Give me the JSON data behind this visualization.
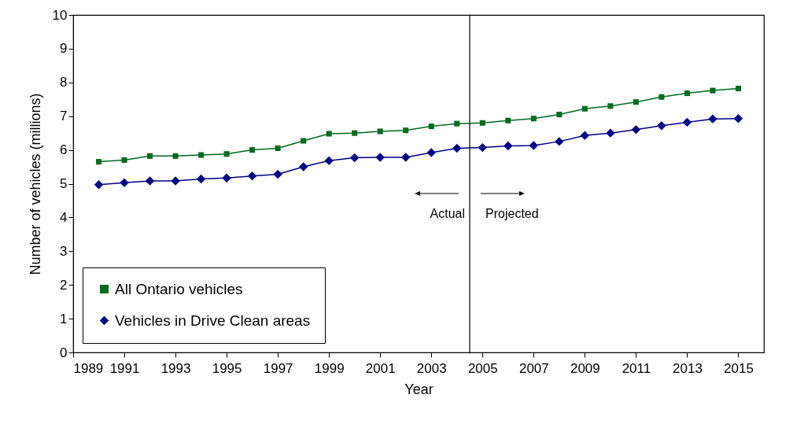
{
  "chart_data": {
    "type": "line",
    "xlabel": "Year",
    "ylabel": "Number of vehicles (millions)",
    "x": [
      1990,
      1991,
      1992,
      1993,
      1994,
      1995,
      1996,
      1997,
      1998,
      1999,
      2000,
      2001,
      2002,
      2003,
      2004,
      2005,
      2006,
      2007,
      2008,
      2009,
      2010,
      2011,
      2012,
      2013,
      2014,
      2015
    ],
    "series": [
      {
        "name": "All Ontario vehicles",
        "color": "#006b1f",
        "marker": "square",
        "values": [
          5.65,
          5.7,
          5.82,
          5.82,
          5.85,
          5.88,
          6.0,
          6.05,
          6.27,
          6.48,
          6.5,
          6.55,
          6.58,
          6.7,
          6.78,
          6.8,
          6.87,
          6.93,
          7.05,
          7.22,
          7.3,
          7.42,
          7.57,
          7.68,
          7.76,
          7.82
        ]
      },
      {
        "name": "Vehicles in Drive Clean areas",
        "color": "#000088",
        "marker": "diamond",
        "values": [
          4.97,
          5.03,
          5.08,
          5.08,
          5.14,
          5.17,
          5.23,
          5.28,
          5.5,
          5.68,
          5.77,
          5.78,
          5.78,
          5.92,
          6.05,
          6.07,
          6.12,
          6.13,
          6.25,
          6.43,
          6.5,
          6.6,
          6.72,
          6.82,
          6.92,
          6.93
        ]
      }
    ],
    "xlim": [
      1989,
      2016
    ],
    "xticks": [
      1989,
      1991,
      1993,
      1995,
      1997,
      1999,
      2001,
      2003,
      2005,
      2007,
      2009,
      2011,
      2013,
      2015
    ],
    "ylim": [
      0,
      10
    ],
    "yticks": [
      0,
      1,
      2,
      3,
      4,
      5,
      6,
      7,
      8,
      9,
      10
    ],
    "ref_lines": [
      {
        "axis": "x",
        "value": 2004.5,
        "color": "#000000"
      }
    ],
    "annotations": [
      "Actual",
      "Projected"
    ],
    "grid": false,
    "legend": "bottom left",
    "line_style": "solid"
  }
}
